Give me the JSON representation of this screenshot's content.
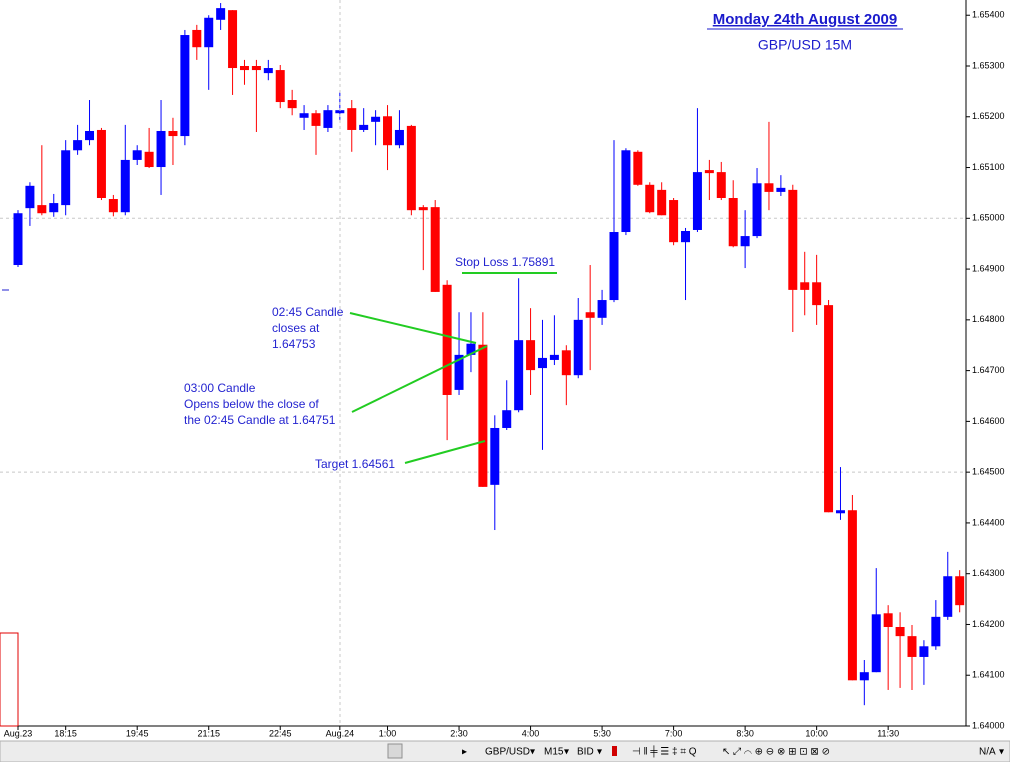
{
  "chart_data": {
    "type": "candlestick",
    "title": "Monday 24th August 2009",
    "subtitle": "GBP/USD 15M",
    "up_color": "#0000ff",
    "down_color": "#ff0000",
    "categories": [
      "Aug.23",
      null,
      null,
      null,
      "18:15",
      null,
      null,
      null,
      null,
      null,
      "19:45",
      null,
      null,
      null,
      null,
      null,
      "21:15",
      null,
      null,
      null,
      null,
      null,
      "22:45",
      null,
      null,
      null,
      null,
      "Aug.24",
      null,
      null,
      null,
      "1:00",
      null,
      null,
      null,
      null,
      null,
      "2:30",
      null,
      null,
      null,
      null,
      null,
      "4:00",
      null,
      null,
      null,
      null,
      null,
      "5:30",
      null,
      null,
      null,
      null,
      null,
      "7:00",
      null,
      null,
      null,
      null,
      null,
      "8:30",
      null,
      null,
      null,
      null,
      null,
      "10:00",
      null,
      null,
      null,
      null,
      null,
      "11:30",
      null,
      null,
      null,
      null,
      null,
      null
    ],
    "open": [
      1.64908,
      1.6502,
      1.65026,
      1.65012,
      1.65026,
      1.65134,
      1.65154,
      1.65174,
      1.65038,
      1.65012,
      1.65115,
      1.65131,
      1.65101,
      1.65172,
      1.65162,
      1.65371,
      1.65337,
      1.65391,
      1.6541,
      1.653,
      1.653,
      1.65286,
      1.65292,
      1.65233,
      1.65198,
      1.65207,
      1.65178,
      1.65207,
      1.65217,
      1.65174,
      1.6519,
      1.65201,
      1.65144,
      1.65182,
      1.65022,
      1.65022,
      1.64869,
      1.64662,
      1.64731,
      1.64751,
      1.64475,
      1.64587,
      1.64622,
      1.6476,
      1.64705,
      1.64721,
      1.6474,
      1.64691,
      1.64815,
      1.64804,
      1.64839,
      1.64973,
      1.65131,
      1.65066,
      1.65056,
      1.65036,
      1.64953,
      1.64977,
      1.65095,
      1.65091,
      1.6504,
      1.64945,
      1.64965,
      1.65069,
      1.65052,
      1.65056,
      1.64874,
      1.64874,
      1.64829,
      1.64419,
      1.64425,
      1.6409,
      1.64106,
      1.64222,
      1.64195,
      1.64177,
      1.64136,
      1.64157,
      1.64215,
      1.64295
    ],
    "high": [
      1.65016,
      1.65071,
      1.65144,
      1.65048,
      1.65154,
      1.65184,
      1.65233,
      1.65178,
      1.65046,
      1.65184,
      1.65144,
      1.65178,
      1.65233,
      1.65198,
      1.65371,
      1.65381,
      1.654,
      1.65424,
      1.6541,
      1.65312,
      1.65312,
      1.65312,
      1.65302,
      1.65253,
      1.65223,
      1.65213,
      1.65223,
      1.65249,
      1.65233,
      1.65217,
      1.65213,
      1.65223,
      1.65213,
      1.65184,
      1.65026,
      1.65036,
      1.64878,
      1.64815,
      1.64815,
      1.64815,
      1.64612,
      1.64681,
      1.64882,
      1.64823,
      1.648,
      1.64809,
      1.6475,
      1.64843,
      1.64908,
      1.64859,
      1.65154,
      1.65138,
      1.65134,
      1.65071,
      1.65071,
      1.6504,
      1.64981,
      1.65217,
      1.65115,
      1.65111,
      1.65075,
      1.65016,
      1.65099,
      1.6519,
      1.65085,
      1.65066,
      1.64934,
      1.64928,
      1.64839,
      1.6451,
      1.64455,
      1.6413,
      1.64311,
      1.64238,
      1.64224,
      1.64199,
      1.64169,
      1.64248,
      1.64343,
      1.64307
    ],
    "low": [
      1.64904,
      1.64985,
      1.65006,
      1.65003,
      1.65006,
      1.65125,
      1.65144,
      1.65036,
      1.65004,
      1.65006,
      1.65105,
      1.65099,
      1.65046,
      1.65105,
      1.65144,
      1.65312,
      1.65253,
      1.65371,
      1.65243,
      1.65263,
      1.6517,
      1.65272,
      1.65217,
      1.65203,
      1.65174,
      1.65125,
      1.6517,
      1.65194,
      1.65131,
      1.6517,
      1.65144,
      1.65095,
      1.65138,
      1.65006,
      1.64898,
      1.64855,
      1.64563,
      1.64652,
      1.64697,
      1.64471,
      1.64386,
      1.64583,
      1.64618,
      1.64652,
      1.64544,
      1.64711,
      1.64632,
      1.64685,
      1.64701,
      1.6479,
      1.64835,
      1.64967,
      1.65064,
      1.6501,
      1.65006,
      1.64947,
      1.64839,
      1.64973,
      1.65036,
      1.65036,
      1.64943,
      1.64902,
      1.64961,
      1.65016,
      1.65044,
      1.64776,
      1.64809,
      1.6479,
      1.64421,
      1.64406,
      1.6409,
      1.64041,
      1.64106,
      1.64071,
      1.64075,
      1.64071,
      1.64081,
      1.6415,
      1.64209,
      1.64224
    ],
    "close": [
      1.6501,
      1.65064,
      1.6501,
      1.6503,
      1.65134,
      1.65154,
      1.65172,
      1.6504,
      1.65012,
      1.65115,
      1.65134,
      1.65101,
      1.65172,
      1.65162,
      1.65361,
      1.65337,
      1.65395,
      1.65414,
      1.65296,
      1.65292,
      1.65292,
      1.65296,
      1.65229,
      1.65217,
      1.65207,
      1.65182,
      1.65213,
      1.65213,
      1.65174,
      1.65184,
      1.652,
      1.65144,
      1.65174,
      1.65016,
      1.65016,
      1.64855,
      1.64652,
      1.64731,
      1.64753,
      1.64471,
      1.64587,
      1.64622,
      1.6476,
      1.64701,
      1.64725,
      1.64731,
      1.64691,
      1.648,
      1.64804,
      1.64839,
      1.64973,
      1.65134,
      1.65066,
      1.65012,
      1.65006,
      1.64953,
      1.64975,
      1.65091,
      1.65089,
      1.6504,
      1.64945,
      1.64965,
      1.65069,
      1.65052,
      1.6506,
      1.64859,
      1.64859,
      1.64829,
      1.64421,
      1.64425,
      1.6409,
      1.64106,
      1.6422,
      1.64195,
      1.64177,
      1.64136,
      1.64157,
      1.64215,
      1.64295,
      1.64238
    ],
    "ylim": [
      1.64,
      1.6543
    ],
    "yticks": [
      {
        "value": 1.654,
        "label": "1.65400"
      },
      {
        "value": 1.653,
        "label": "1.65300"
      },
      {
        "value": 1.652,
        "label": "1.65200"
      },
      {
        "value": 1.651,
        "label": "1.65100"
      },
      {
        "value": 1.65,
        "label": "1.65000"
      },
      {
        "value": 1.649,
        "label": "1.64900"
      },
      {
        "value": 1.648,
        "label": "1.64800"
      },
      {
        "value": 1.647,
        "label": "1.64700"
      },
      {
        "value": 1.646,
        "label": "1.64600"
      },
      {
        "value": 1.645,
        "label": "1.64500"
      },
      {
        "value": 1.644,
        "label": "1.64400"
      },
      {
        "value": 1.643,
        "label": "1.64300"
      },
      {
        "value": 1.642,
        "label": "1.64200"
      },
      {
        "value": 1.641,
        "label": "1.64100"
      },
      {
        "value": 1.64,
        "label": "1.64000"
      }
    ],
    "hlines": [
      1.65,
      1.645
    ],
    "annotations": [
      {
        "lines": [
          "Stop Loss 1.75891"
        ]
      },
      {
        "lines": [
          "02:45 Candle",
          "closes at",
          "1.64753"
        ]
      },
      {
        "lines": [
          "03:00 Candle",
          "Opens below the close of",
          "the 02:45 Candle at 1.64751"
        ]
      },
      {
        "lines": [
          "Target 1.64561"
        ]
      }
    ]
  },
  "toolbar": {
    "symbol": "GBP/USD",
    "timeframe": "M15",
    "quote": "BID",
    "status": "N/A"
  }
}
